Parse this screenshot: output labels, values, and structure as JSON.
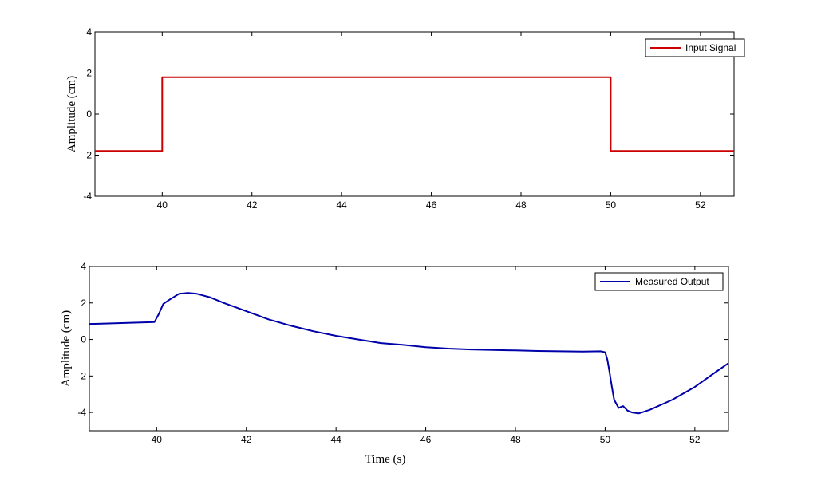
{
  "chart_data": [
    {
      "type": "line",
      "title": "",
      "xlabel": "",
      "ylabel": "Amplitude (cm)",
      "xlim": [
        38.5,
        52.75
      ],
      "ylim": [
        -4,
        4
      ],
      "x_ticks": [
        40,
        42,
        44,
        46,
        48,
        50,
        52
      ],
      "y_ticks": [
        -4,
        -2,
        0,
        2,
        4
      ],
      "grid": false,
      "legend_position": "top-right",
      "series": [
        {
          "name": "Input Signal",
          "color": "#cc0000",
          "x": [
            38.5,
            40.0,
            40.0,
            50.0,
            50.0,
            52.75
          ],
          "y": [
            -1.8,
            -1.8,
            1.8,
            1.8,
            -1.8,
            -1.8
          ]
        }
      ]
    },
    {
      "type": "line",
      "title": "",
      "xlabel": "Time (s)",
      "ylabel": "Amplitude (cm)",
      "xlim": [
        38.5,
        52.75
      ],
      "ylim": [
        -5,
        4
      ],
      "x_ticks": [
        40,
        42,
        44,
        46,
        48,
        50,
        52
      ],
      "y_ticks": [
        -4,
        -2,
        0,
        2,
        4
      ],
      "grid": false,
      "legend_position": "top-right",
      "series": [
        {
          "name": "Measured Output",
          "color": "#0000aa",
          "x": [
            38.5,
            39.0,
            39.5,
            39.95,
            40.05,
            40.15,
            40.3,
            40.5,
            40.7,
            40.9,
            41.2,
            41.5,
            42.0,
            42.5,
            43.0,
            43.5,
            44.0,
            44.5,
            45.0,
            45.5,
            46.0,
            46.5,
            47.0,
            47.5,
            48.0,
            48.5,
            49.0,
            49.5,
            49.9,
            50.0,
            50.05,
            50.1,
            50.15,
            50.2,
            50.3,
            50.4,
            50.5,
            50.6,
            50.75,
            51.0,
            51.5,
            52.0,
            52.4,
            52.75
          ],
          "y": [
            0.85,
            0.88,
            0.92,
            0.95,
            1.4,
            1.95,
            2.2,
            2.5,
            2.55,
            2.5,
            2.3,
            2.0,
            1.55,
            1.1,
            0.75,
            0.45,
            0.2,
            0.0,
            -0.2,
            -0.3,
            -0.42,
            -0.5,
            -0.55,
            -0.58,
            -0.6,
            -0.63,
            -0.65,
            -0.66,
            -0.65,
            -0.7,
            -1.1,
            -1.8,
            -2.6,
            -3.3,
            -3.75,
            -3.65,
            -3.9,
            -4.0,
            -4.05,
            -3.85,
            -3.3,
            -2.6,
            -1.9,
            -1.3
          ]
        }
      ]
    }
  ]
}
